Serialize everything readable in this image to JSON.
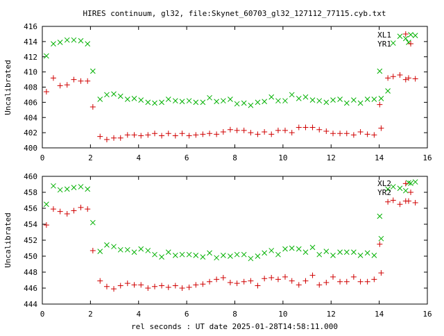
{
  "page_title": "HIRES continuum, gl32, file:Skynet_60703_gl32_127112_77115.cyb.txt",
  "x_axis_label": "rel seconds : UT date 2025-01-28T14:58:11.000",
  "colors": {
    "green": "#00b000",
    "red": "#d00000",
    "frame": "#000000"
  },
  "chart_data": [
    {
      "type": "scatter",
      "title": "HIRES continuum, gl32, file:Skynet_60703_gl32_127112_77115.cyb.txt",
      "xlabel": "",
      "ylabel": "Uncalibrated",
      "xlim": [
        0,
        16
      ],
      "ylim": [
        400,
        416
      ],
      "x_ticks": [
        0,
        2,
        4,
        6,
        8,
        10,
        12,
        14,
        16
      ],
      "y_ticks": [
        400,
        402,
        404,
        406,
        408,
        410,
        412,
        414,
        416
      ],
      "grid": false,
      "legend": "top-right",
      "series": [
        {
          "name": "XL1",
          "marker": "x",
          "color": "#00b000",
          "points": [
            [
              0.17,
              412.1
            ],
            [
              0.46,
              413.7
            ],
            [
              0.74,
              413.9
            ],
            [
              1.03,
              414.2
            ],
            [
              1.31,
              414.2
            ],
            [
              1.6,
              414.1
            ],
            [
              1.88,
              413.7
            ],
            [
              2.1,
              410.1
            ],
            [
              2.4,
              406.4
            ],
            [
              2.68,
              407.0
            ],
            [
              2.97,
              407.1
            ],
            [
              3.25,
              406.8
            ],
            [
              3.54,
              406.4
            ],
            [
              3.82,
              406.5
            ],
            [
              4.1,
              406.3
            ],
            [
              4.39,
              406.0
            ],
            [
              4.67,
              405.9
            ],
            [
              4.96,
              406.0
            ],
            [
              5.24,
              406.4
            ],
            [
              5.53,
              406.2
            ],
            [
              5.81,
              406.1
            ],
            [
              6.1,
              406.2
            ],
            [
              6.38,
              406.0
            ],
            [
              6.67,
              406.0
            ],
            [
              6.95,
              406.6
            ],
            [
              7.24,
              406.1
            ],
            [
              7.52,
              406.2
            ],
            [
              7.81,
              406.4
            ],
            [
              8.09,
              405.8
            ],
            [
              8.38,
              405.9
            ],
            [
              8.66,
              405.6
            ],
            [
              8.95,
              406.0
            ],
            [
              9.23,
              406.1
            ],
            [
              9.52,
              406.7
            ],
            [
              9.8,
              406.2
            ],
            [
              10.09,
              406.2
            ],
            [
              10.37,
              407.0
            ],
            [
              10.66,
              406.5
            ],
            [
              10.94,
              406.7
            ],
            [
              11.23,
              406.3
            ],
            [
              11.51,
              406.2
            ],
            [
              11.8,
              406.0
            ],
            [
              12.08,
              406.3
            ],
            [
              12.37,
              406.4
            ],
            [
              12.65,
              405.9
            ],
            [
              12.94,
              406.3
            ],
            [
              13.22,
              405.9
            ],
            [
              13.51,
              406.4
            ],
            [
              13.79,
              406.4
            ],
            [
              14.08,
              406.5
            ],
            [
              14.36,
              407.5
            ],
            [
              14.02,
              410.1
            ],
            [
              14.58,
              413.8
            ],
            [
              14.86,
              414.7
            ],
            [
              15.1,
              414.4
            ],
            [
              15.22,
              413.9
            ],
            [
              15.5,
              414.8
            ]
          ]
        },
        {
          "name": "YR1",
          "marker": "+",
          "color": "#d00000",
          "points": [
            [
              0.17,
              407.4
            ],
            [
              0.46,
              409.2
            ],
            [
              0.74,
              408.2
            ],
            [
              1.03,
              408.3
            ],
            [
              1.31,
              409.0
            ],
            [
              1.6,
              408.8
            ],
            [
              1.88,
              408.8
            ],
            [
              2.1,
              405.4
            ],
            [
              2.4,
              401.5
            ],
            [
              2.68,
              401.1
            ],
            [
              2.97,
              401.3
            ],
            [
              3.25,
              401.3
            ],
            [
              3.54,
              401.7
            ],
            [
              3.82,
              401.7
            ],
            [
              4.1,
              401.6
            ],
            [
              4.39,
              401.7
            ],
            [
              4.67,
              401.9
            ],
            [
              4.96,
              401.6
            ],
            [
              5.24,
              401.9
            ],
            [
              5.53,
              401.6
            ],
            [
              5.81,
              401.9
            ],
            [
              6.1,
              401.6
            ],
            [
              6.38,
              401.7
            ],
            [
              6.67,
              401.8
            ],
            [
              6.95,
              401.9
            ],
            [
              7.24,
              401.8
            ],
            [
              7.52,
              402.1
            ],
            [
              7.81,
              402.4
            ],
            [
              8.09,
              402.3
            ],
            [
              8.38,
              402.3
            ],
            [
              8.66,
              402.0
            ],
            [
              8.95,
              401.8
            ],
            [
              9.23,
              402.1
            ],
            [
              9.52,
              401.8
            ],
            [
              9.8,
              402.3
            ],
            [
              10.09,
              402.3
            ],
            [
              10.37,
              402.0
            ],
            [
              10.66,
              402.7
            ],
            [
              10.94,
              402.7
            ],
            [
              11.23,
              402.7
            ],
            [
              11.51,
              402.4
            ],
            [
              11.8,
              402.2
            ],
            [
              12.08,
              401.9
            ],
            [
              12.37,
              401.9
            ],
            [
              12.65,
              401.9
            ],
            [
              12.94,
              401.7
            ],
            [
              13.22,
              402.1
            ],
            [
              13.51,
              401.8
            ],
            [
              13.79,
              401.7
            ],
            [
              14.08,
              402.6
            ],
            [
              14.02,
              405.7
            ],
            [
              14.36,
              409.2
            ],
            [
              14.58,
              409.4
            ],
            [
              14.86,
              409.6
            ],
            [
              15.1,
              409.0
            ],
            [
              15.1,
              415.0
            ],
            [
              15.22,
              409.2
            ],
            [
              15.5,
              409.1
            ]
          ]
        }
      ]
    },
    {
      "type": "scatter",
      "title": "",
      "xlabel": "rel seconds : UT date 2025-01-28T14:58:11.000",
      "ylabel": "Uncalibrated",
      "xlim": [
        0,
        16
      ],
      "ylim": [
        444,
        460
      ],
      "x_ticks": [
        0,
        2,
        4,
        6,
        8,
        10,
        12,
        14,
        16
      ],
      "y_ticks": [
        444,
        446,
        448,
        450,
        452,
        454,
        456,
        458,
        460
      ],
      "grid": false,
      "legend": "top-right",
      "series": [
        {
          "name": "XL2",
          "marker": "x",
          "color": "#00b000",
          "points": [
            [
              0.17,
              456.5
            ],
            [
              0.46,
              458.8
            ],
            [
              0.74,
              458.3
            ],
            [
              1.03,
              458.4
            ],
            [
              1.31,
              458.6
            ],
            [
              1.6,
              458.7
            ],
            [
              1.88,
              458.4
            ],
            [
              2.1,
              454.2
            ],
            [
              2.4,
              450.6
            ],
            [
              2.68,
              451.4
            ],
            [
              2.97,
              451.2
            ],
            [
              3.25,
              450.8
            ],
            [
              3.54,
              450.8
            ],
            [
              3.82,
              450.5
            ],
            [
              4.1,
              450.9
            ],
            [
              4.39,
              450.7
            ],
            [
              4.67,
              450.2
            ],
            [
              4.96,
              449.9
            ],
            [
              5.24,
              450.5
            ],
            [
              5.53,
              450.1
            ],
            [
              5.81,
              450.2
            ],
            [
              6.1,
              450.2
            ],
            [
              6.38,
              450.1
            ],
            [
              6.67,
              449.9
            ],
            [
              6.95,
              450.4
            ],
            [
              7.24,
              449.8
            ],
            [
              7.52,
              450.1
            ],
            [
              7.81,
              450.0
            ],
            [
              8.09,
              450.2
            ],
            [
              8.38,
              450.2
            ],
            [
              8.66,
              449.7
            ],
            [
              8.95,
              450.0
            ],
            [
              9.23,
              450.4
            ],
            [
              9.52,
              450.7
            ],
            [
              9.8,
              450.2
            ],
            [
              10.09,
              450.9
            ],
            [
              10.37,
              451.0
            ],
            [
              10.66,
              450.9
            ],
            [
              10.94,
              450.5
            ],
            [
              11.23,
              451.1
            ],
            [
              11.51,
              450.2
            ],
            [
              11.8,
              450.6
            ],
            [
              12.08,
              450.1
            ],
            [
              12.37,
              450.5
            ],
            [
              12.65,
              450.5
            ],
            [
              12.94,
              450.5
            ],
            [
              13.22,
              450.1
            ],
            [
              13.51,
              450.4
            ],
            [
              13.79,
              450.1
            ],
            [
              14.08,
              452.2
            ],
            [
              14.02,
              455.0
            ],
            [
              14.36,
              458.4
            ],
            [
              14.58,
              458.7
            ],
            [
              14.86,
              458.5
            ],
            [
              15.1,
              458.2
            ],
            [
              15.22,
              459.2
            ],
            [
              15.5,
              459.3
            ]
          ]
        },
        {
          "name": "YR2",
          "marker": "+",
          "color": "#d00000",
          "points": [
            [
              0.17,
              453.9
            ],
            [
              0.46,
              455.9
            ],
            [
              0.74,
              455.6
            ],
            [
              1.03,
              455.3
            ],
            [
              1.31,
              455.7
            ],
            [
              1.6,
              456.1
            ],
            [
              1.88,
              455.9
            ],
            [
              2.1,
              450.7
            ],
            [
              2.4,
              446.9
            ],
            [
              2.68,
              446.2
            ],
            [
              2.97,
              445.9
            ],
            [
              3.25,
              446.3
            ],
            [
              3.54,
              446.6
            ],
            [
              3.82,
              446.4
            ],
            [
              4.1,
              446.4
            ],
            [
              4.39,
              446.0
            ],
            [
              4.67,
              446.2
            ],
            [
              4.96,
              446.3
            ],
            [
              5.24,
              446.1
            ],
            [
              5.53,
              446.3
            ],
            [
              5.81,
              446.0
            ],
            [
              6.1,
              446.1
            ],
            [
              6.38,
              446.4
            ],
            [
              6.67,
              446.5
            ],
            [
              6.95,
              446.8
            ],
            [
              7.24,
              447.1
            ],
            [
              7.52,
              447.3
            ],
            [
              7.81,
              446.7
            ],
            [
              8.09,
              446.6
            ],
            [
              8.38,
              446.8
            ],
            [
              8.66,
              446.9
            ],
            [
              8.95,
              446.3
            ],
            [
              9.23,
              447.2
            ],
            [
              9.52,
              447.3
            ],
            [
              9.8,
              447.1
            ],
            [
              10.09,
              447.4
            ],
            [
              10.37,
              446.9
            ],
            [
              10.66,
              446.4
            ],
            [
              10.94,
              446.9
            ],
            [
              11.23,
              447.6
            ],
            [
              11.51,
              446.4
            ],
            [
              11.8,
              446.7
            ],
            [
              12.08,
              447.4
            ],
            [
              12.37,
              446.8
            ],
            [
              12.65,
              446.8
            ],
            [
              12.94,
              447.4
            ],
            [
              13.22,
              446.8
            ],
            [
              13.51,
              446.8
            ],
            [
              13.79,
              447.1
            ],
            [
              14.08,
              447.9
            ],
            [
              14.02,
              451.5
            ],
            [
              14.36,
              456.8
            ],
            [
              14.58,
              457.0
            ],
            [
              14.86,
              456.5
            ],
            [
              15.1,
              456.9
            ],
            [
              15.1,
              459.1
            ],
            [
              15.22,
              456.9
            ],
            [
              15.5,
              456.7
            ]
          ]
        }
      ]
    }
  ]
}
